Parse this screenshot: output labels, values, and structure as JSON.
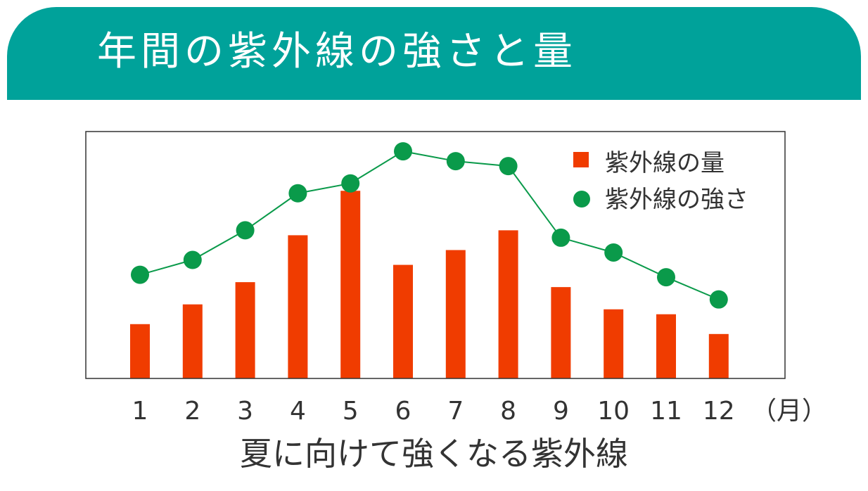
{
  "chart_data": {
    "type": "bar",
    "title": "年間の紫外線の強さと量",
    "subtitle": "夏に向けて強くなる紫外線",
    "categories": [
      "1",
      "2",
      "3",
      "4",
      "5",
      "6",
      "7",
      "8",
      "9",
      "10",
      "11",
      "12"
    ],
    "x_unit_label": "（月）",
    "series": [
      {
        "name": "紫外線の量",
        "kind": "bar",
        "color": "#f03c00",
        "values": [
          22,
          30,
          39,
          58,
          76,
          46,
          52,
          60,
          37,
          28,
          26,
          18
        ]
      },
      {
        "name": "紫外線の強さ",
        "kind": "line",
        "color": "#0a9a4a",
        "values": [
          42,
          48,
          60,
          75,
          79,
          92,
          88,
          86,
          57,
          51,
          41,
          32
        ]
      }
    ],
    "ylim": [
      0,
      100
    ],
    "grid": false,
    "legend": "top-right"
  }
}
